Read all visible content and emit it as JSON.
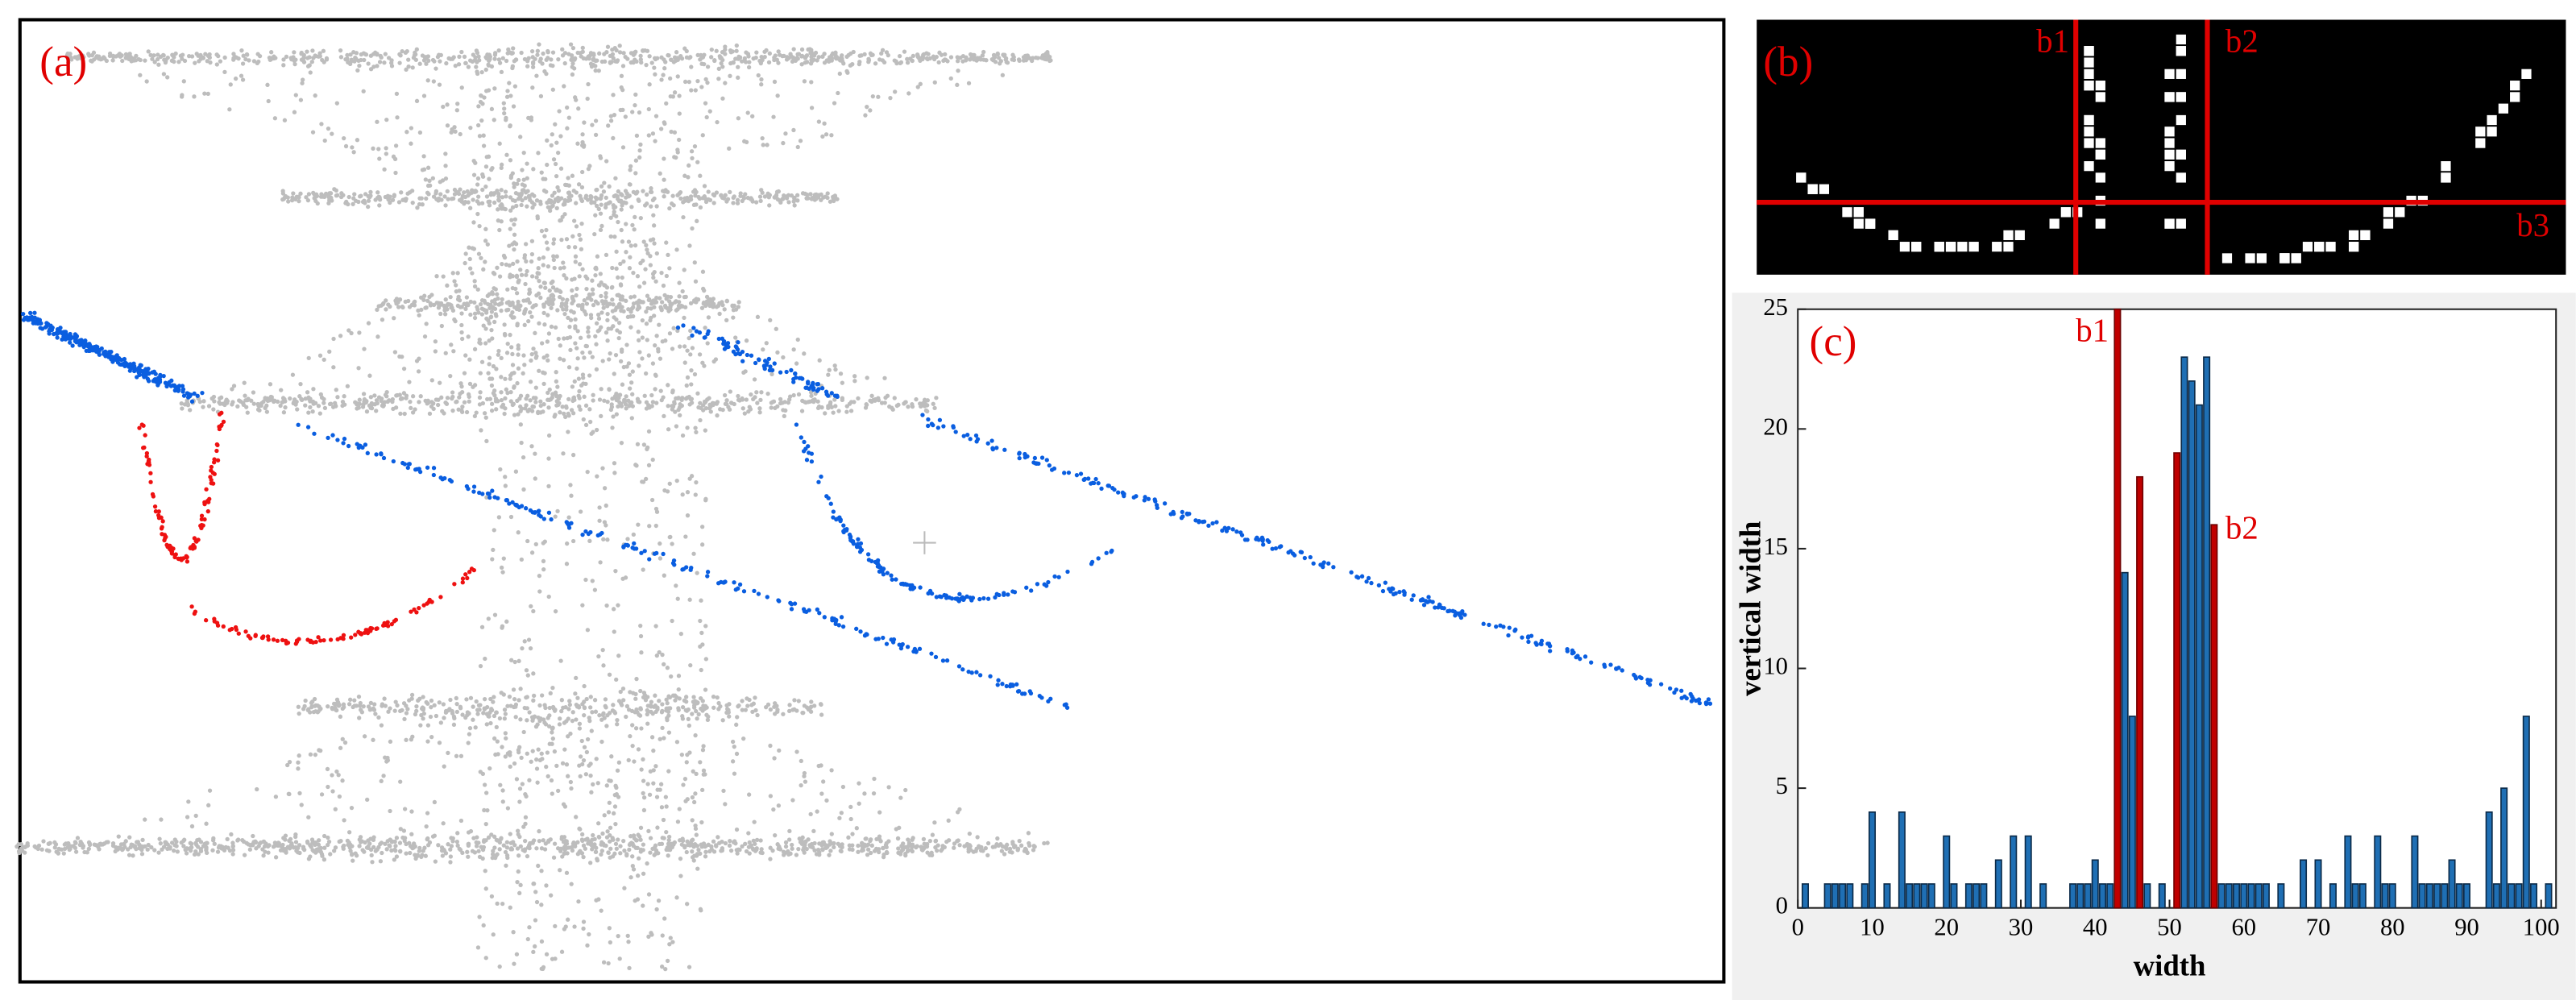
{
  "panels": {
    "a": {
      "label": "(a)"
    },
    "b": {
      "label": "(b)",
      "annotations": [
        "b1",
        "b2",
        "b3"
      ]
    }
  },
  "chart_data": {
    "type": "bar",
    "panel_label": "(c)",
    "x_label": "width",
    "y_label": "vertical width",
    "annotations": [
      "b1",
      "b2"
    ],
    "x": [
      1,
      4,
      5,
      6,
      7,
      9,
      10,
      12,
      14,
      15,
      16,
      17,
      18,
      20,
      21,
      23,
      24,
      25,
      27,
      29,
      31,
      33,
      37,
      38,
      39,
      40,
      41,
      42,
      43,
      44,
      45,
      46,
      47,
      49,
      51,
      52,
      53,
      54,
      55,
      56,
      57,
      58,
      59,
      60,
      61,
      62,
      63,
      65,
      68,
      70,
      72,
      74,
      75,
      76,
      78,
      79,
      80,
      83,
      84,
      85,
      86,
      87,
      88,
      89,
      90,
      93,
      94,
      95,
      96,
      97,
      98,
      99,
      101
    ],
    "values": [
      1,
      1,
      1,
      1,
      1,
      1,
      4,
      1,
      4,
      1,
      1,
      1,
      1,
      3,
      1,
      1,
      1,
      1,
      2,
      3,
      3,
      1,
      1,
      1,
      1,
      2,
      1,
      1,
      25,
      14,
      8,
      18,
      1,
      1,
      19,
      23,
      22,
      21,
      23,
      16,
      1,
      1,
      1,
      1,
      1,
      1,
      1,
      1,
      2,
      2,
      1,
      3,
      1,
      1,
      3,
      1,
      1,
      3,
      1,
      1,
      1,
      1,
      2,
      1,
      1,
      4,
      1,
      5,
      1,
      1,
      8,
      1,
      1
    ],
    "colors": [
      "#1f6fb4",
      "#1f6fb4",
      "#1f6fb4",
      "#1f6fb4",
      "#1f6fb4",
      "#1f6fb4",
      "#1f6fb4",
      "#1f6fb4",
      "#1f6fb4",
      "#1f6fb4",
      "#1f6fb4",
      "#1f6fb4",
      "#1f6fb4",
      "#1f6fb4",
      "#1f6fb4",
      "#1f6fb4",
      "#1f6fb4",
      "#1f6fb4",
      "#1f6fb4",
      "#1f6fb4",
      "#1f6fb4",
      "#1f6fb4",
      "#1f6fb4",
      "#1f6fb4",
      "#1f6fb4",
      "#1f6fb4",
      "#1f6fb4",
      "#1f6fb4",
      "#c00000",
      "#1f6fb4",
      "#1f6fb4",
      "#c00000",
      "#1f6fb4",
      "#1f6fb4",
      "#c00000",
      "#1f6fb4",
      "#1f6fb4",
      "#1f6fb4",
      "#1f6fb4",
      "#c00000",
      "#1f6fb4",
      "#1f6fb4",
      "#1f6fb4",
      "#1f6fb4",
      "#1f6fb4",
      "#1f6fb4",
      "#1f6fb4",
      "#1f6fb4",
      "#1f6fb4",
      "#1f6fb4",
      "#1f6fb4",
      "#1f6fb4",
      "#1f6fb4",
      "#1f6fb4",
      "#1f6fb4",
      "#1f6fb4",
      "#1f6fb4",
      "#1f6fb4",
      "#1f6fb4",
      "#1f6fb4",
      "#1f6fb4",
      "#1f6fb4",
      "#1f6fb4",
      "#1f6fb4",
      "#1f6fb4",
      "#1f6fb4",
      "#1f6fb4",
      "#1f6fb4",
      "#1f6fb4",
      "#1f6fb4",
      "#1f6fb4",
      "#1f6fb4",
      "#1f6fb4"
    ],
    "xlim": [
      0,
      102
    ],
    "ylim": [
      0,
      25
    ],
    "xticks": [
      0,
      10,
      20,
      30,
      40,
      50,
      60,
      70,
      80,
      90,
      100
    ],
    "yticks": [
      0,
      5,
      10,
      15,
      20,
      25
    ]
  }
}
